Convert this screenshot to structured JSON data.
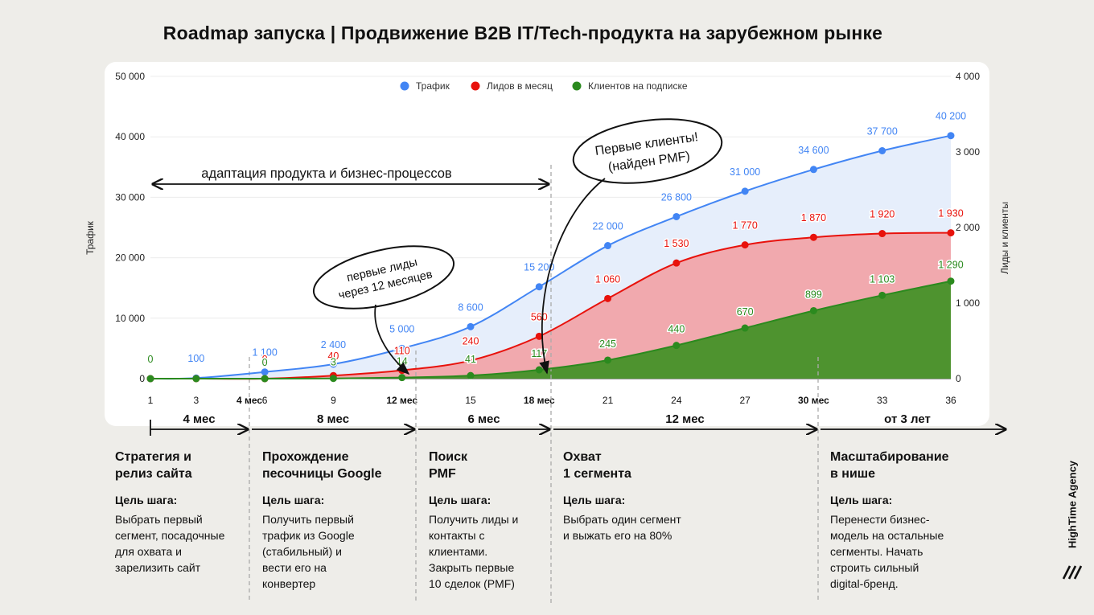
{
  "title": "Roadmap запуска | Продвижение B2B IT/Tech-продукта на зарубежном рынке",
  "brand": {
    "name": "HighTime Agency",
    "logo_icon": "hightime-logo-icon"
  },
  "colors": {
    "traffic": "#4285f4",
    "leads": "#e8120c",
    "clients": "#2b8a1e",
    "leads_fill": "#f1a9ae",
    "traffic_fill": "#e6eefb",
    "clients_fill": "#4e932f"
  },
  "chart_data": {
    "type": "area",
    "x": [
      1,
      3,
      6,
      9,
      12,
      15,
      18,
      21,
      24,
      27,
      30,
      33,
      36
    ],
    "x_tick_labels": [
      "1",
      "3",
      "6",
      "9",
      "12 мес",
      "15",
      "18 мес",
      "21",
      "24",
      "27",
      "30 мес",
      "33",
      "36"
    ],
    "ylabel": "Трафик",
    "y2label": "Лиды и клиенты",
    "ylim": [
      0,
      50000
    ],
    "y_ticks": [
      "0",
      "10 000",
      "20 000",
      "30 000",
      "40 000",
      "50 000"
    ],
    "y2lim": [
      0,
      4000
    ],
    "y2_ticks": [
      "0",
      "1 000",
      "2 000",
      "3 000",
      "4 000"
    ],
    "legend_position": "top",
    "series": [
      {
        "name": "Трафик",
        "axis": "left",
        "values": [
          0,
          100,
          1100,
          2400,
          5000,
          8600,
          15200,
          22000,
          26800,
          31000,
          34600,
          37700,
          40200
        ],
        "labels": [
          "",
          "100",
          "1 100",
          "2 400",
          "5 000",
          "8 600",
          "15 200",
          "22 000",
          "26 800",
          "31 000",
          "34 600",
          "37 700",
          "40 200"
        ]
      },
      {
        "name": "Лидов в месяц",
        "axis": "right",
        "values": [
          0,
          0,
          0,
          40,
          110,
          240,
          560,
          1060,
          1530,
          1770,
          1870,
          1920,
          1930
        ],
        "labels": [
          "",
          "",
          "0",
          "40",
          "110",
          "240",
          "560",
          "1 060",
          "1 530",
          "1 770",
          "1 870",
          "1 920",
          "1 930"
        ]
      },
      {
        "name": "Клиентов на подписке",
        "axis": "right",
        "values": [
          0,
          0,
          0,
          3,
          14,
          41,
          117,
          245,
          440,
          670,
          899,
          1103,
          1290
        ],
        "labels": [
          "0",
          "",
          "0",
          "3",
          "14",
          "41",
          "117",
          "245",
          "440",
          "670",
          "899",
          "1 103",
          "1 290"
        ]
      }
    ],
    "annotations": {
      "adaptation": "адаптация продукта и бизнес-процессов",
      "first_leads": "первые лиды\nчерез 12 месяцев",
      "first_clients": "Первые клиенты!\n(найден PMF)",
      "extra_tick": "4 мес"
    },
    "phases": [
      "4 мес",
      "8 мес",
      "6 мес",
      "12 мес",
      "от 3 лет"
    ]
  },
  "stages": [
    {
      "title": "Стратегия и\nрелиз сайта",
      "goal_label": "Цель шага:",
      "desc": "Выбрать первый\nсегмент, посадочные\nдля охвата и\nзарелизить сайт"
    },
    {
      "title": "Прохождение\nпесочницы Google",
      "goal_label": "Цель шага:",
      "desc": "Получить первый\nтрафик из Google\n(стабильный) и\nвести его на\nконвертер"
    },
    {
      "title": "Поиск\nPMF",
      "goal_label": "Цель шага:",
      "desc": "Получить лиды и\nконтакты с\nклиентами.\nЗакрыть первые\n10 сделок (PMF)"
    },
    {
      "title": "Охват\n1 сегмента",
      "goal_label": "Цель шага:",
      "desc": "Выбрать один сегмент\nи выжать его на 80%"
    },
    {
      "title": "Масштабирование\nв нише",
      "goal_label": "Цель шага:",
      "desc": "Перенести бизнес-\nмодель на остальные\nсегменты. Начать\nстроить сильный\ndigital-бренд."
    }
  ]
}
